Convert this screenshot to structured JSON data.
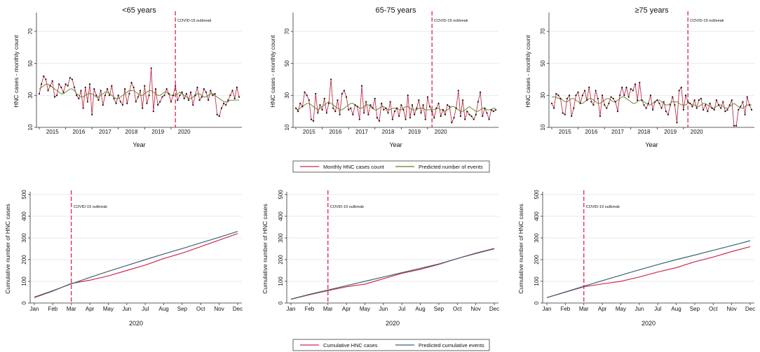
{
  "colors": {
    "observed": "#c0304b",
    "predicted": "#5a7f20",
    "cum_observed": "#d22a4e",
    "cum_predicted": "#3c6478",
    "marker": "#111111",
    "outbreak": "#d8294a"
  },
  "legend_top": {
    "observed": "Monthly HNC cases count",
    "predicted": "Predicted number of events"
  },
  "legend_bottom": {
    "observed": "Cumulative HNC cases",
    "predicted": "Predicted cumulative events"
  },
  "chart_data": [
    {
      "type": "line",
      "title": "<65 years",
      "xlabel": "Year",
      "ylabel": "HNC cases - monthly count",
      "ylim": [
        10,
        80
      ],
      "yticks": [
        10,
        30,
        50,
        70
      ],
      "x_tick_labels": [
        "2015",
        "2016",
        "2017",
        "2018",
        "2019",
        "2020"
      ],
      "x_start": "2015-01",
      "annotation": "COVID-19 outbreak",
      "outbreak_index": 62,
      "series": [
        {
          "name": "Monthly HNC cases count",
          "values": [
            31,
            37,
            42,
            40,
            33,
            36,
            39,
            29,
            30,
            37,
            35,
            32,
            37,
            36,
            41,
            40,
            35,
            30,
            28,
            33,
            22,
            35,
            26,
            37,
            18,
            34,
            30,
            27,
            33,
            24,
            30,
            34,
            30,
            36,
            28,
            25,
            30,
            26,
            24,
            34,
            25,
            31,
            38,
            35,
            26,
            29,
            33,
            22,
            36,
            25,
            30,
            47,
            20,
            34,
            24,
            26,
            29,
            30,
            34,
            31,
            26,
            30,
            36,
            27,
            30,
            32,
            28,
            31,
            27,
            32,
            24,
            30,
            35,
            27,
            29,
            34,
            32,
            27,
            33,
            30,
            31,
            18,
            17,
            22,
            25,
            24,
            27,
            30,
            33,
            28,
            35,
            29
          ]
        },
        {
          "name": "Predicted number of events",
          "values": [
            34,
            35,
            36,
            37,
            37,
            36,
            35,
            34,
            33,
            32,
            31,
            31,
            32,
            33,
            34,
            34,
            33,
            31,
            30,
            29,
            29,
            30,
            31,
            31,
            31,
            30,
            29,
            29,
            30,
            31,
            32,
            32,
            31,
            30,
            29,
            28,
            28,
            29,
            30,
            31,
            32,
            33,
            33,
            33,
            32,
            31,
            30,
            30,
            31,
            32,
            33,
            33,
            32,
            31,
            30,
            30,
            31,
            32,
            32,
            31,
            30,
            30,
            30,
            31,
            32,
            31,
            30,
            29,
            28,
            28,
            29,
            30,
            31,
            31,
            30,
            29,
            29,
            30,
            31,
            31,
            30,
            29,
            28,
            27,
            26,
            26,
            26,
            27,
            27,
            27,
            27,
            27
          ]
        }
      ]
    },
    {
      "type": "line",
      "title": "65-75 years",
      "xlabel": "Year",
      "ylabel": "HNC cases - monthly count",
      "ylim": [
        10,
        80
      ],
      "yticks": [
        10,
        30,
        50,
        70
      ],
      "x_tick_labels": [
        "2015",
        "2016",
        "2017",
        "2018",
        "2019",
        "2020"
      ],
      "x_start": "2015-01",
      "annotation": "COVID-19 outbreak",
      "outbreak_index": 62,
      "series": [
        {
          "name": "Monthly HNC cases count",
          "values": [
            22,
            20,
            25,
            23,
            32,
            30,
            27,
            15,
            14,
            31,
            19,
            24,
            21,
            28,
            19,
            25,
            40,
            22,
            20,
            27,
            18,
            31,
            33,
            29,
            21,
            22,
            18,
            24,
            23,
            15,
            36,
            19,
            26,
            18,
            24,
            22,
            28,
            16,
            14,
            25,
            21,
            22,
            19,
            26,
            15,
            20,
            22,
            17,
            24,
            21,
            15,
            30,
            16,
            24,
            18,
            22,
            27,
            19,
            24,
            15,
            29,
            23,
            20,
            16,
            22,
            25,
            17,
            21,
            18,
            24,
            23,
            13,
            16,
            22,
            33,
            17,
            27,
            15,
            20,
            18,
            17,
            15,
            18,
            26,
            32,
            17,
            22,
            19,
            15,
            21,
            20,
            21
          ]
        },
        {
          "name": "Predicted number of events",
          "values": [
            22,
            21,
            22,
            23,
            24,
            25,
            25,
            24,
            23,
            22,
            21,
            22,
            23,
            24,
            25,
            26,
            25,
            24,
            23,
            22,
            21,
            21,
            22,
            23,
            24,
            25,
            25,
            24,
            23,
            22,
            22,
            23,
            24,
            24,
            23,
            22,
            21,
            21,
            22,
            23,
            23,
            22,
            21,
            21,
            22,
            22,
            22,
            21,
            21,
            22,
            23,
            23,
            22,
            21,
            21,
            21,
            22,
            22,
            22,
            21,
            21,
            21,
            21,
            21,
            22,
            22,
            21,
            21,
            20,
            21,
            22,
            23,
            23,
            22,
            21,
            20,
            20,
            21,
            22,
            23,
            22,
            21,
            20,
            20,
            21,
            22,
            22,
            21,
            21,
            21,
            22,
            22
          ]
        }
      ]
    },
    {
      "type": "line",
      "title": "≥75 years",
      "xlabel": "Year",
      "ylabel": "HNC cases - monthly count",
      "ylim": [
        10,
        80
      ],
      "yticks": [
        10,
        30,
        50,
        70
      ],
      "x_tick_labels": [
        "2015",
        "2016",
        "2017",
        "2018",
        "2019",
        "2020"
      ],
      "x_start": "2015-01",
      "annotation": "COVID-19 outbreak",
      "outbreak_index": 62,
      "series": [
        {
          "name": "Monthly HNC cases count",
          "values": [
            25,
            22,
            31,
            30,
            28,
            19,
            18,
            28,
            30,
            17,
            22,
            30,
            32,
            25,
            30,
            33,
            27,
            35,
            26,
            24,
            33,
            28,
            17,
            30,
            24,
            22,
            25,
            29,
            28,
            26,
            20,
            30,
            35,
            30,
            35,
            29,
            34,
            33,
            37,
            27,
            38,
            27,
            24,
            22,
            25,
            30,
            21,
            26,
            27,
            25,
            22,
            26,
            20,
            18,
            24,
            29,
            24,
            13,
            33,
            35,
            21,
            30,
            26,
            25,
            23,
            27,
            22,
            27,
            28,
            21,
            24,
            20,
            25,
            22,
            21,
            27,
            24,
            22,
            26,
            20,
            21,
            24,
            27,
            11,
            11,
            21,
            23,
            26,
            18,
            29,
            24,
            21
          ]
        },
        {
          "name": "Predicted number of events",
          "values": [
            29,
            29,
            29,
            28,
            28,
            27,
            26,
            26,
            27,
            28,
            28,
            27,
            26,
            25,
            25,
            26,
            27,
            28,
            28,
            27,
            26,
            25,
            25,
            26,
            27,
            28,
            28,
            27,
            26,
            26,
            27,
            28,
            29,
            29,
            28,
            27,
            26,
            25,
            25,
            26,
            27,
            27,
            26,
            25,
            24,
            24,
            25,
            26,
            27,
            27,
            26,
            25,
            24,
            24,
            25,
            26,
            26,
            26,
            25,
            24,
            24,
            24,
            25,
            25,
            24,
            24,
            23,
            23,
            24,
            25,
            25,
            24,
            23,
            22,
            22,
            23,
            24,
            24,
            23,
            22,
            22,
            23,
            24,
            25,
            24,
            23,
            22,
            22,
            23,
            24,
            24,
            24
          ]
        }
      ]
    },
    {
      "type": "line",
      "title": "",
      "xlabel": "2020",
      "ylabel": "Cumulative number of HNC cases",
      "ylim": [
        0,
        500
      ],
      "yticks": [
        0,
        100,
        200,
        300,
        400,
        500
      ],
      "categories": [
        "Jan",
        "Feb",
        "Mar",
        "Apr",
        "May",
        "Jun",
        "Jul",
        "Aug",
        "Sep",
        "Oct",
        "Nov",
        "Dec"
      ],
      "annotation": "COVID-19 outbreak",
      "outbreak_index": 2,
      "series": [
        {
          "name": "Cumulative HNC cases",
          "values": [
            25,
            55,
            90,
            105,
            125,
            150,
            175,
            205,
            230,
            260,
            290,
            320
          ]
        },
        {
          "name": "Predicted cumulative events",
          "values": [
            27,
            57,
            88,
            118,
            146,
            173,
            200,
            226,
            251,
            277,
            303,
            330
          ]
        }
      ]
    },
    {
      "type": "line",
      "title": "",
      "xlabel": "2020",
      "ylabel": "Cumulative number of HNC cases",
      "ylim": [
        0,
        500
      ],
      "yticks": [
        0,
        100,
        200,
        300,
        400,
        500
      ],
      "categories": [
        "Jan",
        "Feb",
        "Mar",
        "Apr",
        "May",
        "Jun",
        "Jul",
        "Aug",
        "Sep",
        "Oct",
        "Nov",
        "Dec"
      ],
      "annotation": "COVID-19 outbreak",
      "outbreak_index": 2,
      "series": [
        {
          "name": "Cumulative HNC cases",
          "values": [
            17,
            38,
            57,
            75,
            87,
            112,
            137,
            155,
            178,
            205,
            230,
            252
          ]
        },
        {
          "name": "Predicted cumulative events",
          "values": [
            18,
            40,
            60,
            80,
            100,
            120,
            140,
            160,
            180,
            205,
            228,
            250
          ]
        }
      ]
    },
    {
      "type": "line",
      "title": "",
      "xlabel": "2020",
      "ylabel": "Cumulative number of HNC cases",
      "ylim": [
        0,
        500
      ],
      "yticks": [
        0,
        100,
        200,
        300,
        400,
        500
      ],
      "categories": [
        "Jan",
        "Feb",
        "Mar",
        "Apr",
        "May",
        "Jun",
        "Jul",
        "Aug",
        "Sep",
        "Oct",
        "Nov",
        "Dec"
      ],
      "annotation": "COVID-19 outbreak",
      "outbreak_index": 2,
      "series": [
        {
          "name": "Cumulative HNC cases",
          "values": [
            25,
            50,
            75,
            88,
            100,
            120,
            143,
            163,
            190,
            212,
            237,
            260
          ]
        },
        {
          "name": "Predicted cumulative events",
          "values": [
            25,
            51,
            77,
            103,
            128,
            153,
            177,
            200,
            221,
            243,
            265,
            287
          ]
        }
      ]
    }
  ]
}
